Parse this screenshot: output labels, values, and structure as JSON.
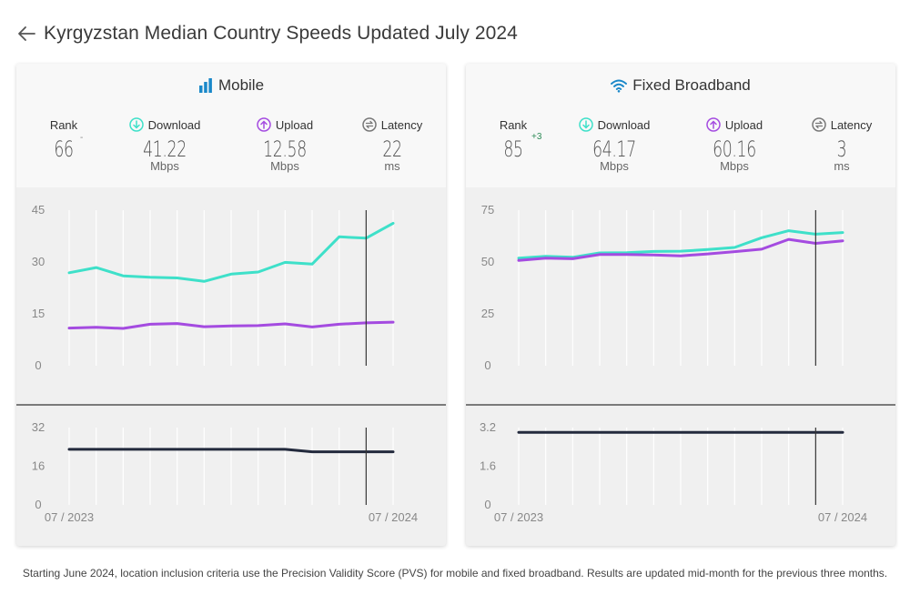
{
  "header": {
    "title": "Kyrgyzstan Median Country Speeds Updated July 2024"
  },
  "colors": {
    "download": "#3ee0c9",
    "upload": "#a44be0",
    "latency": "#232a3d",
    "accent": "#1a88c9"
  },
  "panels": [
    {
      "key": "mobile",
      "title": "Mobile",
      "icon": "signal-bars-icon",
      "metrics": {
        "rank": {
          "label": "Rank",
          "value": "66",
          "change": "-"
        },
        "download": {
          "label": "Download",
          "value": "41.22",
          "unit": "Mbps"
        },
        "upload": {
          "label": "Upload",
          "value": "12.58",
          "unit": "Mbps"
        },
        "latency": {
          "label": "Latency",
          "value": "22",
          "unit": "ms"
        }
      }
    },
    {
      "key": "fixed",
      "title": "Fixed Broadband",
      "icon": "wifi-icon",
      "metrics": {
        "rank": {
          "label": "Rank",
          "value": "85",
          "change": "+3"
        },
        "download": {
          "label": "Download",
          "value": "64.17",
          "unit": "Mbps"
        },
        "upload": {
          "label": "Upload",
          "value": "60.16",
          "unit": "Mbps"
        },
        "latency": {
          "label": "Latency",
          "value": "3",
          "unit": "ms"
        }
      }
    }
  ],
  "chart_data": [
    {
      "type": "line",
      "panel": "mobile",
      "x": [
        "07 / 2023",
        "08 / 2023",
        "09 / 2023",
        "10 / 2023",
        "11 / 2023",
        "12 / 2023",
        "01 / 2024",
        "02 / 2024",
        "03 / 2024",
        "04 / 2024",
        "05 / 2024",
        "06 / 2024",
        "07 / 2024"
      ],
      "x_tick_labels": [
        "07 / 2023",
        "07 / 2024"
      ],
      "speed": {
        "ylim": [
          0,
          45
        ],
        "yticks": [
          "45",
          "30",
          "15",
          "0"
        ],
        "series": [
          {
            "name": "Download",
            "values": [
              26.9,
              28.4,
              26.0,
              25.6,
              25.4,
              24.4,
              26.5,
              27.1,
              29.9,
              29.4,
              37.3,
              36.9,
              41.2
            ]
          },
          {
            "name": "Upload",
            "values": [
              10.9,
              11.1,
              10.8,
              12.0,
              12.2,
              11.3,
              11.5,
              11.6,
              12.1,
              11.2,
              12.0,
              12.4,
              12.6
            ]
          }
        ]
      },
      "latency": {
        "ylim": [
          0,
          32
        ],
        "yticks": [
          "32",
          "16",
          "0"
        ],
        "series": [
          {
            "name": "Latency",
            "values": [
              23,
              23,
              23,
              23,
              23,
              23,
              23,
              23,
              23,
              22,
              22,
              22,
              22
            ]
          }
        ]
      },
      "cursor_index": 11
    },
    {
      "type": "line",
      "panel": "fixed",
      "x": [
        "07 / 2023",
        "08 / 2023",
        "09 / 2023",
        "10 / 2023",
        "11 / 2023",
        "12 / 2023",
        "01 / 2024",
        "02 / 2024",
        "03 / 2024",
        "04 / 2024",
        "05 / 2024",
        "06 / 2024",
        "07 / 2024"
      ],
      "x_tick_labels": [
        "07 / 2023",
        "07 / 2024"
      ],
      "speed": {
        "ylim": [
          0,
          75
        ],
        "yticks": [
          "75",
          "50",
          "25",
          "0"
        ],
        "series": [
          {
            "name": "Download",
            "values": [
              51.9,
              52.7,
              52.3,
              54.4,
              54.5,
              55.1,
              55.2,
              56.0,
              57.0,
              61.7,
              65.1,
              63.4,
              64.2
            ]
          },
          {
            "name": "Upload",
            "values": [
              50.8,
              51.9,
              51.6,
              53.6,
              53.6,
              53.4,
              53.0,
              53.9,
              55.0,
              56.2,
              60.9,
              59.0,
              60.2
            ]
          }
        ]
      },
      "latency": {
        "ylim": [
          0,
          3.2
        ],
        "yticks": [
          "3.2",
          "1.6",
          "0"
        ],
        "series": [
          {
            "name": "Latency",
            "values": [
              3,
              3,
              3,
              3,
              3,
              3,
              3,
              3,
              3,
              3,
              3,
              3,
              3
            ]
          }
        ]
      },
      "cursor_index": 11
    }
  ],
  "footnote": "Starting June 2024, location inclusion criteria use the Precision Validity Score (PVS) for mobile and fixed broadband. Results are updated mid-month for the previous three months."
}
